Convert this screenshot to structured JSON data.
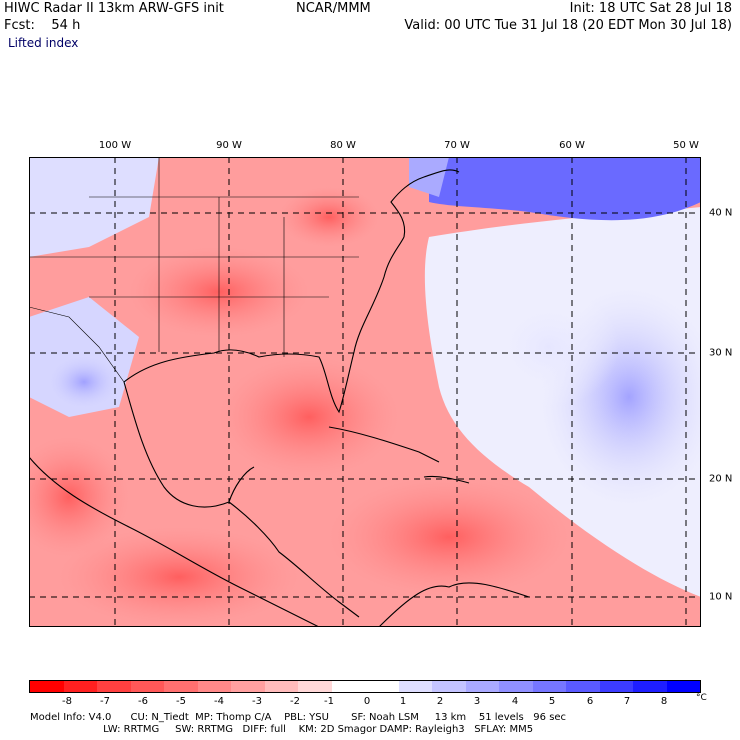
{
  "header": {
    "model_line": "HIWC Radar II 13km ARW-GFS init",
    "org": "NCAR/MMM",
    "init": "Init: 18 UTC Sat 28 Jul 18",
    "fcst": "Fcst:    54 h",
    "valid": "Valid: 00 UTC Tue 31 Jul 18 (20 EDT Mon 30 Jul 18)",
    "field": "Lifted index"
  },
  "axes": {
    "lon_labels": [
      "100 W",
      "90 W",
      "80 W",
      "70 W",
      "60 W",
      "50 W"
    ],
    "lat_labels": [
      "40 N",
      "30 N",
      "20 N",
      "10 N"
    ]
  },
  "colorbar": {
    "colors": [
      "#ff0000",
      "#ff2020",
      "#ff4040",
      "#ff5858",
      "#ff7070",
      "#ff8989",
      "#ffa0a0",
      "#ffbcbc",
      "#ffd8d8",
      "#ffffff",
      "#ffffff",
      "#dedeff",
      "#c4c4ff",
      "#aaaaff",
      "#9090ff",
      "#7676ff",
      "#5a5aff",
      "#3c3cff",
      "#1e1eff",
      "#0000ff"
    ],
    "ticks": [
      "-8",
      "-7",
      "-6",
      "-5",
      "-4",
      "-3",
      "-2",
      "-1",
      "0",
      "1",
      "2",
      "3",
      "4",
      "5",
      "6",
      "7",
      "8"
    ],
    "unit": "°C"
  },
  "footer": {
    "line1": "Model Info: V4.0      CU: N_Tiedt  MP: Thomp C/A    PBL: YSU       SF: Noah LSM     13 km    51 levels   96 sec",
    "line2": "                       LW: RRTMG     SW: RRTMG   DIFF: full    KM: 2D Smagor DAMP: Rayleigh3   SFLAY: MM5"
  }
}
